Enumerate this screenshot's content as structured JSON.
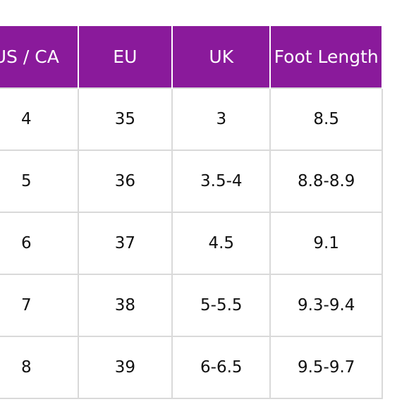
{
  "table": {
    "columns": [
      "US / CA",
      "EU",
      "UK",
      "Foot Length"
    ],
    "rows": [
      [
        "4",
        "35",
        "3",
        "8.5"
      ],
      [
        "5",
        "36",
        "3.5-4",
        "8.8-8.9"
      ],
      [
        "6",
        "37",
        "4.5",
        "9.1"
      ],
      [
        "7",
        "38",
        "5-5.5",
        "9.3-9.4"
      ],
      [
        "8",
        "39",
        "6-6.5",
        "9.5-9.7"
      ]
    ]
  },
  "colors": {
    "header_bg": "#8a1a9b",
    "header_text": "#ffffff",
    "grid": "#d9d9d9"
  }
}
